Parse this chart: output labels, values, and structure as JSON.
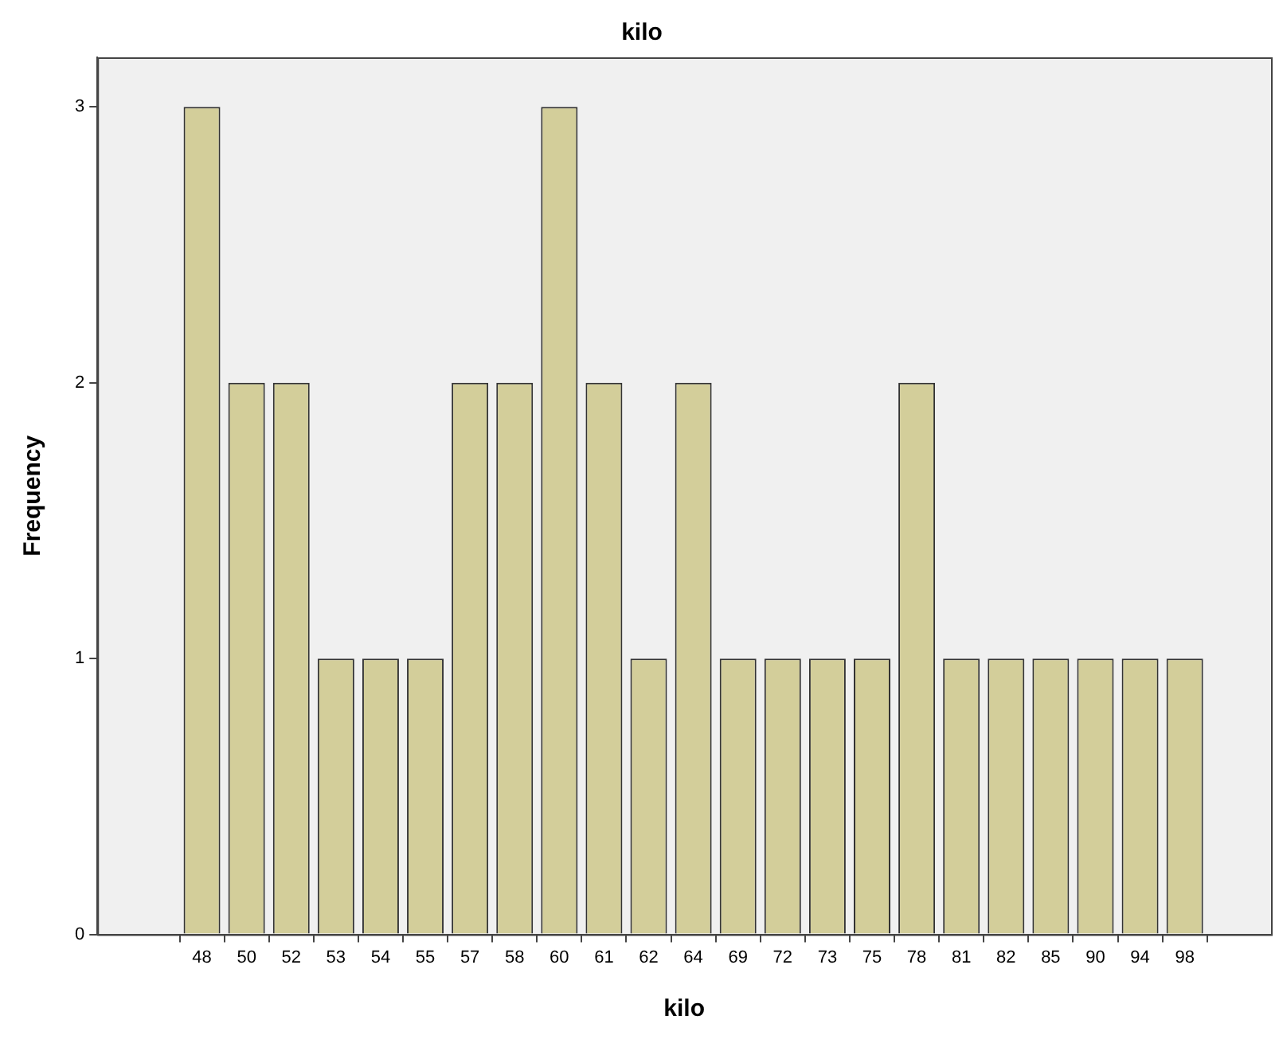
{
  "chart_data": {
    "type": "bar",
    "title": "kilo",
    "xlabel": "kilo",
    "ylabel": "Frequency",
    "categories": [
      "48",
      "50",
      "52",
      "53",
      "54",
      "55",
      "57",
      "58",
      "60",
      "61",
      "62",
      "64",
      "69",
      "72",
      "73",
      "75",
      "78",
      "81",
      "82",
      "85",
      "90",
      "94",
      "98"
    ],
    "values": [
      3,
      2,
      2,
      1,
      1,
      1,
      2,
      2,
      3,
      2,
      1,
      2,
      1,
      1,
      1,
      1,
      2,
      1,
      1,
      1,
      1,
      1,
      1
    ],
    "color": "#d3ce9a",
    "ylim": [
      0,
      3.18
    ],
    "yticks": [
      0,
      1,
      2,
      3
    ],
    "grid": false,
    "legend": false
  }
}
